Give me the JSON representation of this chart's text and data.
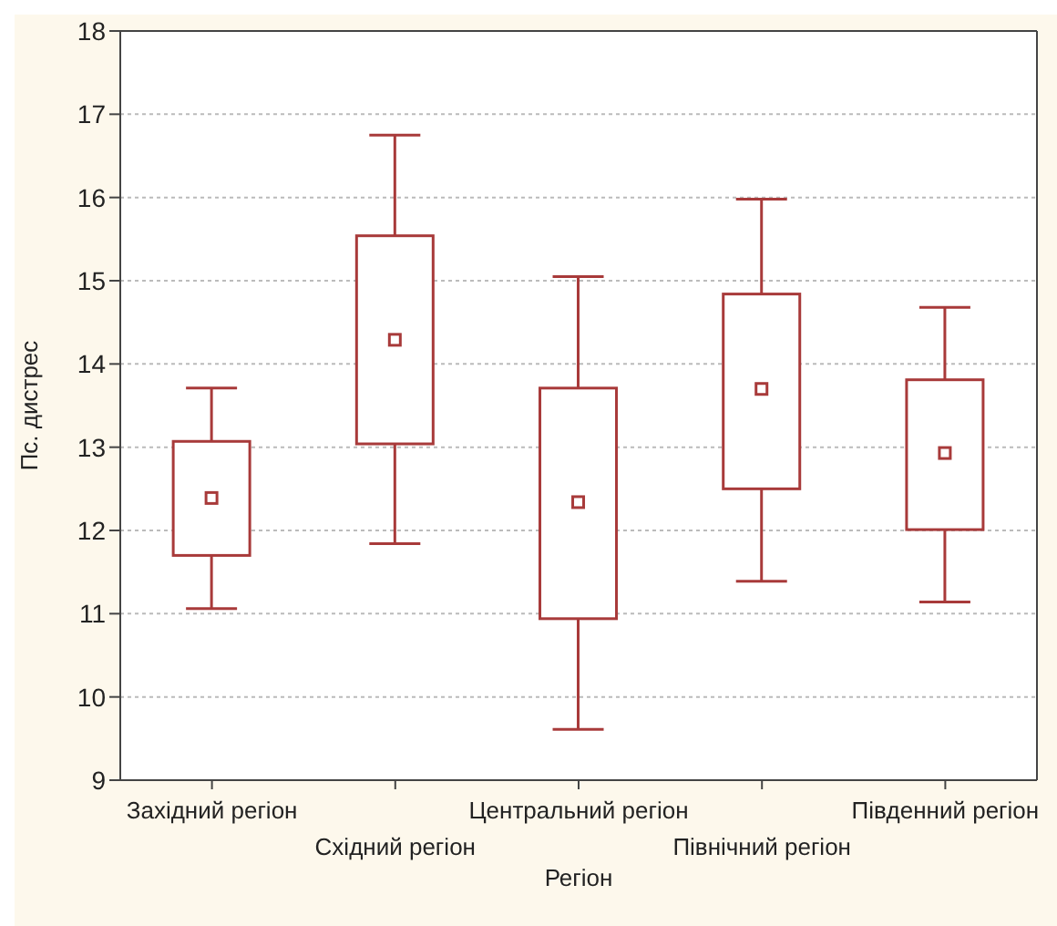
{
  "chart_data": {
    "type": "box",
    "xlabel": "Регіон",
    "ylabel": "Пс. дистрес",
    "categories": [
      "Західний регіон",
      "Східний регіон",
      "Центральний регіон",
      "Північний регіон",
      "Південний регіон"
    ],
    "boxes": [
      {
        "low": 11.06,
        "q1": 11.7,
        "median": 12.39,
        "q3": 13.07,
        "high": 13.71
      },
      {
        "low": 11.84,
        "q1": 13.04,
        "median": 14.29,
        "q3": 15.54,
        "high": 16.75
      },
      {
        "low": 9.61,
        "q1": 10.94,
        "median": 12.34,
        "q3": 13.71,
        "high": 15.05
      },
      {
        "low": 11.39,
        "q1": 12.5,
        "median": 13.7,
        "q3": 14.84,
        "high": 15.98
      },
      {
        "low": 11.14,
        "q1": 12.01,
        "median": 12.93,
        "q3": 13.81,
        "high": 14.68
      }
    ],
    "color": "#a83a3a",
    "marker": "square",
    "ylim": [
      9,
      18
    ],
    "yticks": [
      9,
      10,
      11,
      12,
      13,
      14,
      15,
      16,
      17,
      18
    ],
    "grid": "y"
  }
}
